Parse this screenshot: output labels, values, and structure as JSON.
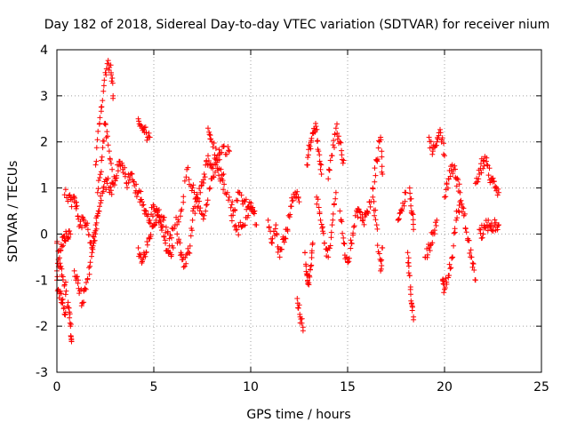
{
  "colors": {
    "series": "#ff0000",
    "grid": "#a0a0a0",
    "axis": "#000000",
    "background": "#ffffff"
  },
  "chart_data": {
    "type": "scatter",
    "title": "Day 182 of 2018, Sidereal Day-to-day VTEC variation (SDTVAR) for receiver nium",
    "xlabel": "GPS time / hours",
    "ylabel": "SDTVAR / TECUs",
    "xlim": [
      0,
      25
    ],
    "ylim": [
      -3,
      4
    ],
    "xticks": [
      0,
      5,
      10,
      15,
      20,
      25
    ],
    "yticks": [
      -3,
      -2,
      -1,
      0,
      1,
      2,
      3,
      4
    ],
    "grid": true,
    "marker": "+",
    "series": [
      {
        "name": "SDTVAR",
        "note": "approximate traces read from the dense '+' markers",
        "traces": [
          [
            [
              0.0,
              -0.2
            ],
            [
              0.2,
              -0.7
            ],
            [
              0.4,
              -1.1
            ],
            [
              0.6,
              -1.6
            ],
            [
              0.7,
              -2.0
            ],
            [
              0.75,
              -2.3
            ]
          ],
          [
            [
              0.0,
              -1.0
            ],
            [
              0.15,
              -1.3
            ],
            [
              0.3,
              -1.5
            ],
            [
              0.45,
              -1.7
            ]
          ],
          [
            [
              0.0,
              -0.8
            ],
            [
              0.2,
              -0.35
            ],
            [
              0.35,
              -0.05
            ],
            [
              0.5,
              0.0
            ],
            [
              0.7,
              0.0
            ]
          ],
          [
            [
              0.4,
              0.85
            ],
            [
              0.7,
              0.75
            ],
            [
              0.9,
              0.7
            ],
            [
              1.0,
              0.55
            ],
            [
              1.2,
              0.2
            ],
            [
              1.4,
              0.3
            ],
            [
              1.6,
              0.1
            ],
            [
              1.8,
              -0.3
            ],
            [
              2.0,
              0.2
            ],
            [
              2.2,
              0.6
            ],
            [
              2.4,
              1.0
            ],
            [
              2.6,
              1.1
            ],
            [
              2.8,
              0.95
            ],
            [
              3.0,
              1.2
            ],
            [
              3.2,
              1.5
            ],
            [
              3.4,
              1.4
            ],
            [
              3.6,
              1.1
            ],
            [
              3.8,
              1.3
            ],
            [
              4.0,
              1.05
            ],
            [
              4.2,
              0.9
            ],
            [
              4.4,
              0.7
            ],
            [
              4.6,
              0.5
            ],
            [
              4.8,
              0.3
            ],
            [
              5.0,
              0.6
            ],
            [
              5.2,
              0.5
            ],
            [
              5.5,
              0.3
            ],
            [
              5.8,
              -0.1
            ],
            [
              6.1,
              0.2
            ],
            [
              6.4,
              0.5
            ],
            [
              6.7,
              1.4
            ],
            [
              7.0,
              1.0
            ],
            [
              7.3,
              0.6
            ],
            [
              7.6,
              0.4
            ],
            [
              7.9,
              1.0
            ],
            [
              8.2,
              1.5
            ],
            [
              8.5,
              1.2
            ],
            [
              8.8,
              0.9
            ],
            [
              9.1,
              0.5
            ],
            [
              9.4,
              0.9
            ],
            [
              9.7,
              0.7
            ],
            [
              10.0,
              0.6
            ],
            [
              10.3,
              0.2
            ]
          ],
          [
            [
              0.9,
              -0.8
            ],
            [
              1.1,
              -1.0
            ],
            [
              1.3,
              -1.5
            ],
            [
              1.5,
              -1.2
            ],
            [
              1.7,
              -0.7
            ],
            [
              1.9,
              -0.2
            ],
            [
              2.1,
              0.4
            ]
          ],
          [
            [
              2.0,
              1.5
            ],
            [
              2.2,
              2.4
            ],
            [
              2.4,
              3.1
            ],
            [
              2.6,
              3.7
            ],
            [
              2.8,
              3.5
            ],
            [
              2.9,
              3.0
            ]
          ],
          [
            [
              2.1,
              0.9
            ],
            [
              2.3,
              1.6
            ],
            [
              2.5,
              2.4
            ],
            [
              2.7,
              1.8
            ],
            [
              2.9,
              1.1
            ]
          ],
          [
            [
              4.2,
              2.5
            ],
            [
              4.4,
              2.3
            ],
            [
              4.6,
              2.2
            ],
            [
              4.8,
              2.1
            ]
          ],
          [
            [
              4.2,
              -0.3
            ],
            [
              4.4,
              -0.6
            ],
            [
              4.6,
              -0.4
            ],
            [
              4.8,
              -0.1
            ],
            [
              5.0,
              0.2
            ],
            [
              5.2,
              0.4
            ],
            [
              5.4,
              0.2
            ],
            [
              5.6,
              -0.2
            ],
            [
              5.8,
              -0.4
            ],
            [
              6.0,
              -0.3
            ]
          ],
          [
            [
              6.2,
              0.0
            ],
            [
              6.4,
              -0.4
            ],
            [
              6.6,
              -0.7
            ],
            [
              6.8,
              -0.4
            ],
            [
              7.0,
              0.3
            ],
            [
              7.2,
              0.7
            ],
            [
              7.4,
              0.9
            ],
            [
              7.6,
              1.3
            ],
            [
              7.8,
              1.7
            ],
            [
              8.0,
              1.5
            ],
            [
              8.3,
              1.7
            ],
            [
              8.6,
              1.9
            ],
            [
              8.9,
              1.8
            ]
          ],
          [
            [
              7.8,
              2.3
            ],
            [
              8.0,
              2.0
            ],
            [
              8.3,
              1.6
            ],
            [
              8.6,
              1.3
            ]
          ],
          [
            [
              9.0,
              0.4
            ],
            [
              9.3,
              0.1
            ],
            [
              9.6,
              0.2
            ],
            [
              9.9,
              0.6
            ],
            [
              10.2,
              0.5
            ]
          ],
          [
            [
              10.9,
              0.3
            ],
            [
              11.1,
              -0.2
            ],
            [
              11.3,
              0.2
            ],
            [
              11.5,
              -0.5
            ],
            [
              11.7,
              -0.1
            ],
            [
              11.9,
              0.1
            ],
            [
              12.1,
              0.6
            ],
            [
              12.3,
              0.9
            ],
            [
              12.5,
              0.7
            ]
          ],
          [
            [
              12.4,
              -1.4
            ],
            [
              12.55,
              -1.8
            ],
            [
              12.7,
              -2.1
            ]
          ],
          [
            [
              12.8,
              -0.4
            ],
            [
              12.9,
              -0.9
            ],
            [
              13.0,
              -1.1
            ],
            [
              13.1,
              -0.7
            ],
            [
              13.2,
              -0.2
            ]
          ],
          [
            [
              12.9,
              1.5
            ],
            [
              13.05,
              1.9
            ],
            [
              13.2,
              2.2
            ],
            [
              13.35,
              2.4
            ],
            [
              13.5,
              1.8
            ],
            [
              13.65,
              1.3
            ]
          ],
          [
            [
              13.4,
              0.8
            ],
            [
              13.6,
              0.3
            ],
            [
              13.8,
              -0.2
            ],
            [
              14.0,
              -0.5
            ],
            [
              14.2,
              0.2
            ],
            [
              14.4,
              0.9
            ]
          ],
          [
            [
              14.0,
              1.2
            ],
            [
              14.2,
              1.7
            ],
            [
              14.4,
              2.3
            ],
            [
              14.6,
              2.0
            ],
            [
              14.8,
              1.6
            ]
          ],
          [
            [
              14.6,
              0.5
            ],
            [
              14.8,
              -0.2
            ],
            [
              15.0,
              -0.6
            ],
            [
              15.2,
              -0.2
            ],
            [
              15.4,
              0.4
            ],
            [
              15.6,
              0.5
            ],
            [
              15.8,
              0.3
            ],
            [
              16.0,
              0.5
            ],
            [
              16.2,
              0.7
            ]
          ],
          [
            [
              16.3,
              0.8
            ],
            [
              16.5,
              0.2
            ],
            [
              16.7,
              -0.8
            ],
            [
              16.8,
              -0.3
            ]
          ],
          [
            [
              16.3,
              1.0
            ],
            [
              16.5,
              1.6
            ],
            [
              16.7,
              2.1
            ],
            [
              16.8,
              1.3
            ]
          ],
          [
            [
              17.6,
              0.3
            ],
            [
              17.8,
              0.5
            ],
            [
              18.0,
              0.9
            ]
          ],
          [
            [
              18.1,
              -0.4
            ],
            [
              18.2,
              -0.9
            ],
            [
              18.3,
              -1.5
            ],
            [
              18.4,
              -1.8
            ]
          ],
          [
            [
              18.2,
              1.0
            ],
            [
              18.3,
              0.5
            ],
            [
              18.4,
              0.1
            ]
          ],
          [
            [
              19.2,
              2.1
            ],
            [
              19.4,
              1.8
            ],
            [
              19.6,
              2.0
            ],
            [
              19.8,
              2.2
            ],
            [
              20.0,
              1.7
            ]
          ],
          [
            [
              19.0,
              -0.5
            ],
            [
              19.2,
              -0.3
            ],
            [
              19.4,
              0.0
            ],
            [
              19.6,
              0.3
            ]
          ],
          [
            [
              19.9,
              -1.0
            ],
            [
              20.0,
              -1.2
            ],
            [
              20.2,
              -0.9
            ],
            [
              20.4,
              -0.5
            ],
            [
              20.6,
              0.3
            ],
            [
              20.8,
              0.7
            ],
            [
              21.0,
              0.4
            ],
            [
              21.2,
              -0.1
            ],
            [
              21.4,
              -0.5
            ],
            [
              21.6,
              -1.0
            ]
          ],
          [
            [
              20.0,
              0.8
            ],
            [
              20.2,
              1.2
            ],
            [
              20.4,
              1.5
            ],
            [
              20.6,
              1.2
            ],
            [
              20.8,
              0.9
            ]
          ],
          [
            [
              21.6,
              1.1
            ],
            [
              21.8,
              1.3
            ],
            [
              22.0,
              1.6
            ],
            [
              22.2,
              1.5
            ],
            [
              22.4,
              1.2
            ],
            [
              22.6,
              1.0
            ],
            [
              22.8,
              0.9
            ]
          ],
          [
            [
              21.8,
              0.1
            ],
            [
              22.0,
              0.0
            ],
            [
              22.2,
              0.2
            ],
            [
              22.4,
              0.1
            ],
            [
              22.6,
              0.2
            ],
            [
              22.8,
              0.2
            ]
          ]
        ]
      }
    ]
  }
}
